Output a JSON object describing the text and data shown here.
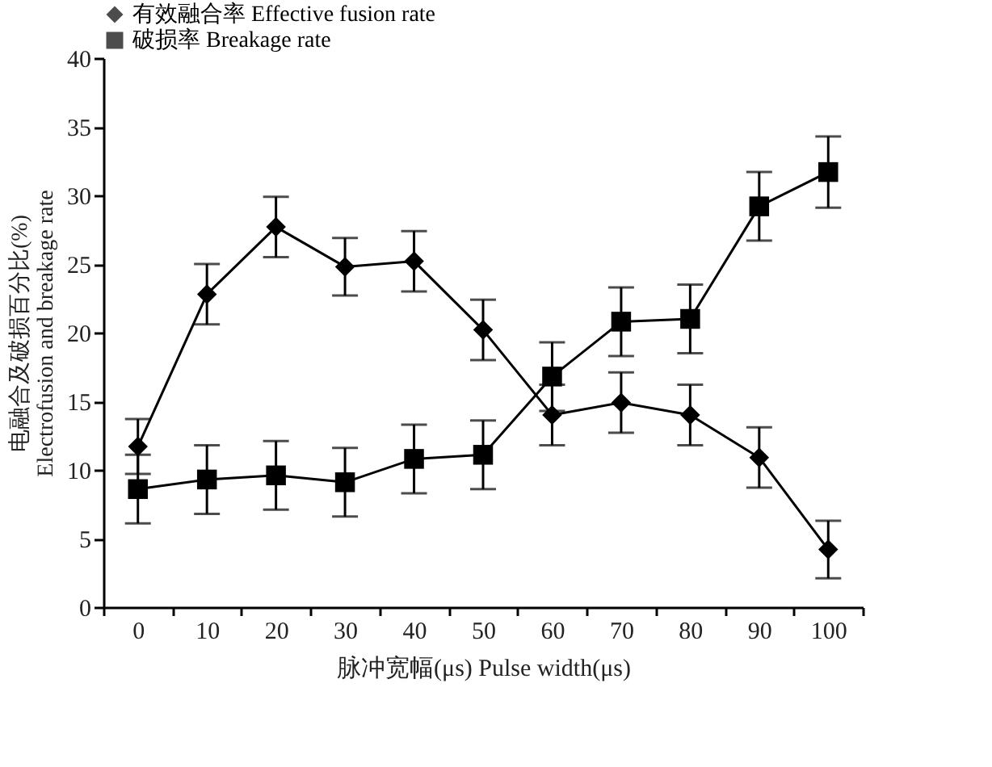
{
  "chart_data": {
    "type": "line",
    "xlabel": "脉冲宽幅(μs) Pulse width(μs)",
    "ylabel": "电融合及破损百分比(%)\nElectrofusion and breakage rate",
    "categories": [
      "0",
      "10",
      "20",
      "30",
      "40",
      "50",
      "60",
      "70",
      "80",
      "90",
      "100"
    ],
    "ylim": [
      0,
      40
    ],
    "yticks": [
      0,
      5,
      10,
      15,
      20,
      25,
      30,
      35,
      40
    ],
    "grid": false,
    "legend": "top",
    "line_style": "solid",
    "series": [
      {
        "name": "有效融合率 Effective fusion rate",
        "color": "#000000",
        "marker": "diamond",
        "values": [
          11.7,
          22.8,
          27.7,
          24.8,
          25.2,
          20.2,
          14.0,
          14.9,
          14.0,
          10.9,
          4.2
        ],
        "errors": [
          2.0,
          2.2,
          2.2,
          2.1,
          2.2,
          2.2,
          2.2,
          2.2,
          2.2,
          2.2,
          2.1
        ]
      },
      {
        "name": "破损率 Breakage rate",
        "color": "#000000",
        "marker": "square",
        "values": [
          8.6,
          9.3,
          9.6,
          9.1,
          10.8,
          11.1,
          16.8,
          20.8,
          21.0,
          29.2,
          31.7
        ],
        "errors": [
          2.5,
          2.5,
          2.5,
          2.5,
          2.5,
          2.5,
          2.5,
          2.5,
          2.5,
          2.5,
          2.6
        ]
      }
    ]
  }
}
